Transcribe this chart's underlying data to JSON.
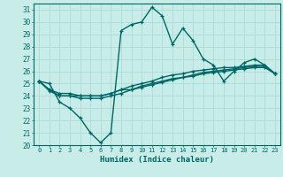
{
  "title": "",
  "xlabel": "Humidex (Indice chaleur)",
  "ylabel": "",
  "bg_color": "#c8ede8",
  "plot_bg_color": "#c8ede8",
  "grid_color": "#b0ddd8",
  "line_color": "#006666",
  "text_color": "#006666",
  "xlim": [
    -0.5,
    23.5
  ],
  "ylim": [
    20,
    31.5
  ],
  "yticks": [
    20,
    21,
    22,
    23,
    24,
    25,
    26,
    27,
    28,
    29,
    30,
    31
  ],
  "xticks": [
    0,
    1,
    2,
    3,
    4,
    5,
    6,
    7,
    8,
    9,
    10,
    11,
    12,
    13,
    14,
    15,
    16,
    17,
    18,
    19,
    20,
    21,
    22,
    23
  ],
  "series": [
    [
      25.2,
      25.0,
      23.5,
      23.0,
      22.2,
      21.0,
      20.2,
      21.0,
      29.3,
      29.8,
      30.0,
      31.2,
      30.5,
      28.2,
      29.5,
      28.5,
      27.0,
      26.5,
      25.2,
      26.0,
      26.7,
      27.0,
      26.5,
      25.8
    ],
    [
      25.2,
      24.5,
      24.0,
      24.0,
      24.0,
      24.0,
      24.0,
      24.2,
      24.5,
      24.5,
      24.8,
      25.0,
      25.2,
      25.4,
      25.5,
      25.7,
      25.9,
      26.0,
      26.1,
      26.2,
      26.3,
      26.4,
      26.4,
      25.8
    ],
    [
      25.2,
      24.4,
      24.0,
      24.0,
      23.8,
      23.8,
      23.8,
      24.0,
      24.2,
      24.5,
      24.7,
      24.9,
      25.1,
      25.3,
      25.5,
      25.6,
      25.8,
      25.9,
      26.0,
      26.1,
      26.2,
      26.3,
      26.3,
      25.8
    ],
    [
      25.2,
      24.5,
      24.2,
      24.2,
      24.0,
      24.0,
      24.0,
      24.2,
      24.5,
      24.8,
      25.0,
      25.2,
      25.5,
      25.7,
      25.8,
      26.0,
      26.1,
      26.2,
      26.3,
      26.3,
      26.4,
      26.5,
      26.5,
      25.8
    ]
  ]
}
